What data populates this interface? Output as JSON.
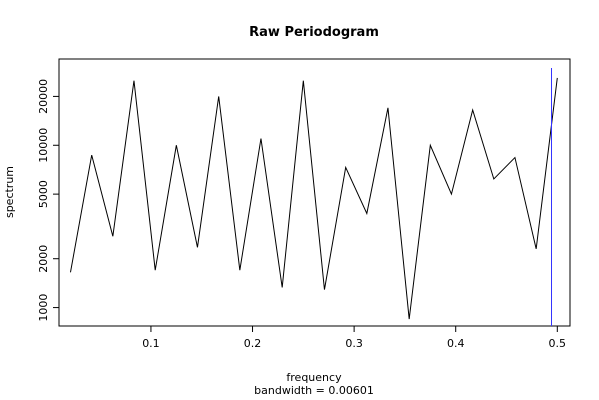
{
  "chart_data": {
    "type": "line",
    "title": "Raw Periodogram",
    "xlabel": "frequency",
    "sublabel": "bandwidth = 0.00601",
    "ylabel": "spectrum",
    "y_scale": "log",
    "xlim": [
      0.0095,
      0.5125
    ],
    "ylim": [
      770,
      34000
    ],
    "x_ticks": [
      0.1,
      0.2,
      0.3,
      0.4,
      0.5
    ],
    "x_tick_labels": [
      "0.1",
      "0.2",
      "0.3",
      "0.4",
      "0.5"
    ],
    "y_ticks": [
      1000,
      2000,
      5000,
      10000,
      20000
    ],
    "y_tick_labels": [
      "1000",
      "2000",
      "5000",
      "10000",
      "20000"
    ],
    "grid": false,
    "series": [
      {
        "color": "#000000",
        "x": [
          0.0208,
          0.0417,
          0.0625,
          0.0833,
          0.1042,
          0.125,
          0.1458,
          0.1667,
          0.1875,
          0.2083,
          0.2292,
          0.25,
          0.2708,
          0.2917,
          0.3125,
          0.3333,
          0.3542,
          0.375,
          0.3958,
          0.4167,
          0.4375,
          0.4583,
          0.4792,
          0.5
        ],
        "values": [
          1650,
          8700,
          2750,
          25000,
          1700,
          10000,
          2350,
          20000,
          1700,
          11000,
          1330,
          25000,
          1290,
          7300,
          3800,
          17000,
          850,
          10000,
          5000,
          16500,
          6200,
          8400,
          2300,
          26000
        ]
      }
    ],
    "vline": {
      "x": 0.4943,
      "color": "#3333ff"
    }
  }
}
